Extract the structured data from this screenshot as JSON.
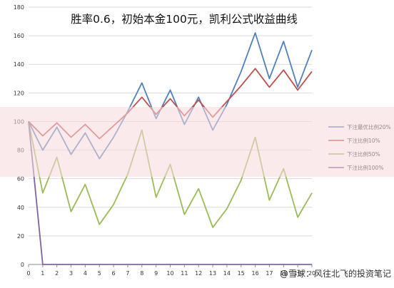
{
  "chart_data": {
    "type": "line",
    "title": "胜率0.6，初始本金100元，凯利公式收益曲线",
    "xlabel": "",
    "ylabel": "",
    "x": [
      0,
      1,
      2,
      3,
      4,
      5,
      6,
      7,
      8,
      9,
      10,
      11,
      12,
      13,
      14,
      15,
      16,
      17,
      18,
      19,
      20
    ],
    "xlim": [
      0,
      20
    ],
    "ylim": [
      0,
      180
    ],
    "yticks": [
      0,
      20,
      40,
      60,
      80,
      100,
      120,
      140,
      160,
      180
    ],
    "grid": true,
    "legend_position": "right",
    "series": [
      {
        "name": "下注最优比例20%",
        "color": "#4f81bd",
        "values": [
          100,
          80,
          96,
          77,
          92,
          74,
          89,
          107,
          127,
          102,
          122,
          98,
          117,
          94,
          112,
          135,
          162,
          130,
          156,
          124,
          150
        ]
      },
      {
        "name": "下注比例10%",
        "color": "#c0504d",
        "values": [
          100,
          90,
          99,
          89,
          98,
          88,
          97,
          106,
          117,
          105,
          116,
          104,
          115,
          103,
          114,
          125,
          137,
          124,
          136,
          122,
          135
        ]
      },
      {
        "name": "下注比例50%",
        "color": "#9bbb59",
        "values": [
          100,
          50,
          75,
          37,
          56,
          28,
          42,
          63,
          94,
          47,
          70,
          35,
          53,
          26,
          39,
          59,
          89,
          45,
          67,
          33,
          50
        ]
      },
      {
        "name": "下注比例100%",
        "color": "#8064a2",
        "values": [
          100,
          0,
          0,
          0,
          0,
          0,
          0,
          0,
          0,
          0,
          0,
          0,
          0,
          0,
          0,
          0,
          0,
          0,
          0,
          0,
          0
        ]
      }
    ]
  },
  "overlay": {
    "banner_color": "#f8d9dc",
    "watermark_text": "@雪球：风往北飞的投资笔记"
  }
}
